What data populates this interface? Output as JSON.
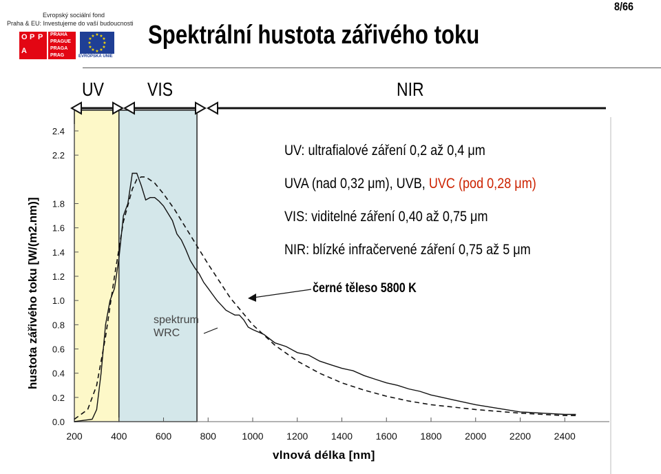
{
  "header": {
    "logo": {
      "line1": "Evropský sociální fond",
      "line2": "Praha & EU: Investujeme do vaší budoucnosti",
      "opp_letters": [
        "O",
        "P",
        "P",
        "A"
      ],
      "praha_text": [
        "PRAHA",
        "PRAGUE",
        "PRAGA",
        "PRAG"
      ],
      "eu_label": "EVROPSKÁ UNIE",
      "colors": {
        "red": "#e30613",
        "eu_blue": "#1f3f95"
      }
    },
    "title": "Spektrální hustota zářivého toku",
    "page_number": "8/66"
  },
  "bands": [
    {
      "label": "UV"
    },
    {
      "label": "VIS"
    },
    {
      "label": "NIR"
    }
  ],
  "descriptions": {
    "uv": "UV: ultrafialové záření 0,2 až 0,4 μm",
    "uva_prefix": "UVA (nad 0,32 μm), UVB, ",
    "uvc": "UVC (pod 0,28 μm)",
    "vis": "VIS: viditelné záření 0,40 až 0,75 μm",
    "nir": "NIR: blízké infračervené záření 0,75 až 5 μm"
  },
  "annotations": {
    "blackbody": "černé těleso 5800 K",
    "wrc_line1": "spektrum",
    "wrc_line2": "WRC"
  },
  "chart_data": {
    "type": "line",
    "xlabel": "vlnová délka [nm]",
    "ylabel": "hustota zářivého toku  [W/(m2.nm)]",
    "xlim": [
      200,
      2600
    ],
    "ylim": [
      0,
      2.4
    ],
    "x_ticks": [
      "200",
      "400",
      "600",
      "800",
      "1000",
      "1200",
      "1400",
      "1600",
      "1800",
      "2000",
      "2200",
      "2400"
    ],
    "y_ticks": [
      "0.0",
      "0.2",
      "0.4",
      "0.6",
      "0.8",
      "1.0",
      "1.2",
      "1.4",
      "1.6",
      "1.8",
      "2.2",
      "2.4"
    ],
    "regions": [
      {
        "name": "UV",
        "from": 200,
        "to": 400,
        "color": "#fdf8c8"
      },
      {
        "name": "VIS",
        "from": 400,
        "to": 750,
        "color": "#d4e7ea"
      }
    ],
    "series": [
      {
        "style": "solid",
        "x": [
          200,
          240,
          280,
          300,
          320,
          340,
          360,
          380,
          400,
          420,
          440,
          460,
          480,
          500,
          520,
          540,
          560,
          580,
          600,
          620,
          640,
          660,
          680,
          700,
          720,
          740,
          760,
          780,
          800,
          820,
          840,
          860,
          880,
          900,
          920,
          940,
          960,
          980,
          1000,
          1050,
          1100,
          1150,
          1200,
          1250,
          1300,
          1350,
          1400,
          1450,
          1500,
          1550,
          1600,
          1650,
          1700,
          1750,
          1800,
          1850,
          1900,
          1950,
          2000,
          2100,
          2200,
          2300,
          2400,
          2450
        ],
        "y": [
          0.0,
          0.01,
          0.02,
          0.1,
          0.4,
          0.8,
          1.0,
          1.1,
          1.35,
          1.7,
          1.8,
          2.05,
          2.05,
          1.95,
          1.83,
          1.85,
          1.85,
          1.82,
          1.78,
          1.72,
          1.66,
          1.55,
          1.5,
          1.42,
          1.33,
          1.27,
          1.22,
          1.15,
          1.1,
          1.05,
          1.0,
          0.96,
          0.92,
          0.9,
          0.88,
          0.88,
          0.84,
          0.78,
          0.76,
          0.72,
          0.65,
          0.62,
          0.57,
          0.55,
          0.5,
          0.47,
          0.44,
          0.42,
          0.38,
          0.35,
          0.32,
          0.3,
          0.27,
          0.25,
          0.22,
          0.2,
          0.18,
          0.16,
          0.14,
          0.11,
          0.08,
          0.07,
          0.06,
          0.06
        ]
      },
      {
        "style": "dashed",
        "x": [
          200,
          260,
          300,
          340,
          380,
          420,
          460,
          480,
          500,
          520,
          560,
          600,
          650,
          700,
          750,
          800,
          900,
          1000,
          1100,
          1200,
          1300,
          1400,
          1500,
          1600,
          1700,
          1800,
          1900,
          2000,
          2100,
          2200,
          2300,
          2400,
          2450
        ],
        "y": [
          0.02,
          0.1,
          0.3,
          0.7,
          1.2,
          1.65,
          1.92,
          2.0,
          2.02,
          2.02,
          1.97,
          1.88,
          1.75,
          1.6,
          1.45,
          1.3,
          1.02,
          0.8,
          0.63,
          0.5,
          0.4,
          0.32,
          0.26,
          0.21,
          0.17,
          0.14,
          0.12,
          0.1,
          0.085,
          0.07,
          0.06,
          0.05,
          0.05
        ]
      }
    ]
  }
}
